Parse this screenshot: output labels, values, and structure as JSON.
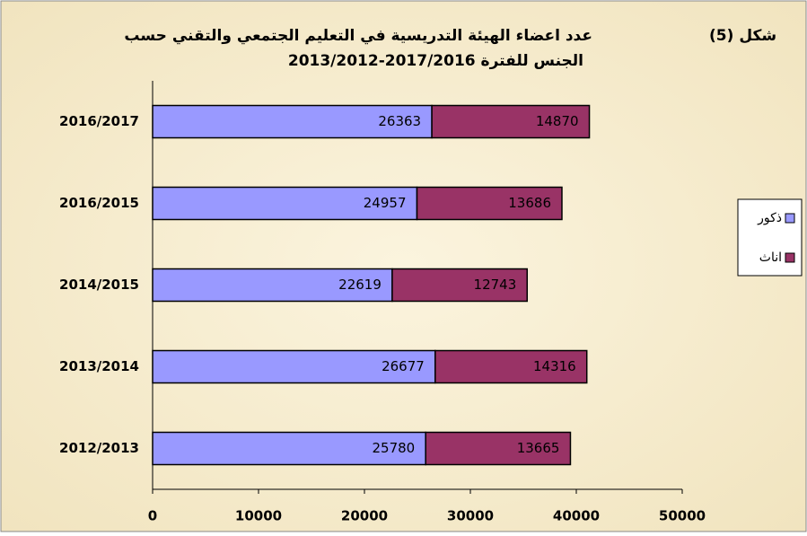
{
  "chart_data": {
    "type": "stacked_barh",
    "figure_label": "شكل (5)",
    "title_lines": [
      "عدد اعضاء الهيئة التدريسية في التعليم الجتمعي والتقني حسب",
      "الجنس للفترة 2017/2016-2013/2012"
    ],
    "categories": [
      "2016/2017",
      "2016/2015",
      "2014/2015",
      "2013/2014",
      "2012/2013"
    ],
    "series": [
      {
        "name": "ذكور",
        "color": "#9999ff",
        "values": [
          26363,
          24957,
          22619,
          26677,
          25780
        ]
      },
      {
        "name": "اناث",
        "color": "#993366",
        "values": [
          14870,
          13686,
          12743,
          14316,
          13665
        ]
      }
    ],
    "xlim": [
      0,
      50000
    ],
    "xticks": [
      0,
      10000,
      20000,
      30000,
      40000,
      50000
    ],
    "legend": "right"
  }
}
